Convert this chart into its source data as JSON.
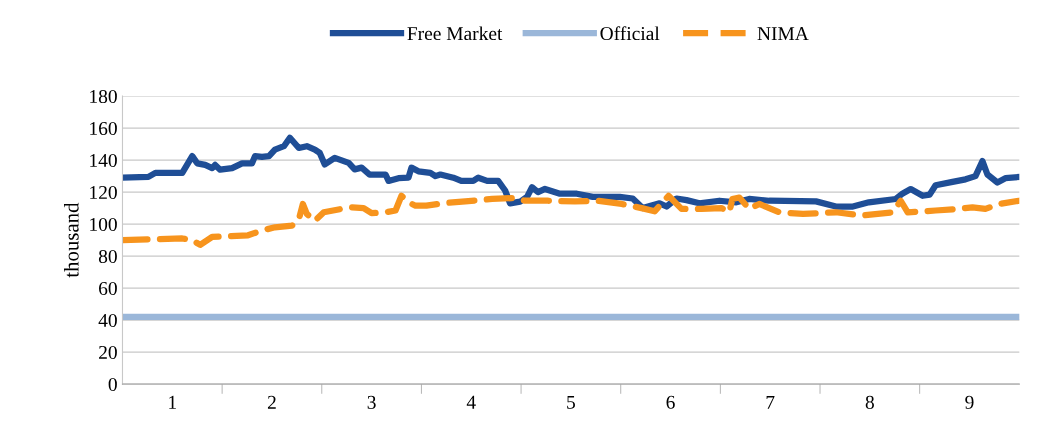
{
  "chart_data": {
    "type": "line",
    "ylabel": "thousand",
    "xlim": [
      0,
      9
    ],
    "ylim": [
      0,
      180
    ],
    "xticks": [
      {
        "value": 0.5,
        "label": "1"
      },
      {
        "value": 1.5,
        "label": "2"
      },
      {
        "value": 2.5,
        "label": "3"
      },
      {
        "value": 3.5,
        "label": "4"
      },
      {
        "value": 4.5,
        "label": "5"
      },
      {
        "value": 5.5,
        "label": "6"
      },
      {
        "value": 6.5,
        "label": "7"
      },
      {
        "value": 7.5,
        "label": "8"
      },
      {
        "value": 8.5,
        "label": "9"
      },
      {
        "value": 1,
        "label": null
      },
      {
        "value": 2,
        "label": null
      },
      {
        "value": 3,
        "label": null
      },
      {
        "value": 4,
        "label": null
      },
      {
        "value": 5,
        "label": null
      },
      {
        "value": 6,
        "label": null
      },
      {
        "value": 7,
        "label": null
      },
      {
        "value": 8,
        "label": null
      }
    ],
    "yticks": [
      0,
      20,
      40,
      60,
      80,
      100,
      120,
      140,
      160,
      180
    ],
    "grid": "y",
    "legend": "top",
    "series": [
      {
        "name": "Free Market",
        "color": "#1f4e96",
        "line_style": "solid",
        "x": [
          0,
          0.26,
          0.33,
          0.6,
          0.7,
          0.75,
          0.83,
          0.9,
          0.93,
          0.98,
          1.1,
          1.2,
          1.3,
          1.33,
          1.4,
          1.47,
          1.53,
          1.62,
          1.68,
          1.77,
          1.85,
          1.93,
          1.98,
          2.03,
          2.13,
          2.27,
          2.33,
          2.4,
          2.48,
          2.64,
          2.67,
          2.77,
          2.87,
          2.9,
          2.97,
          3.09,
          3.14,
          3.19,
          3.32,
          3.4,
          3.52,
          3.57,
          3.66,
          3.77,
          3.84,
          3.89,
          3.99,
          4.06,
          4.11,
          4.17,
          4.24,
          4.39,
          4.56,
          4.72,
          4.99,
          5.12,
          5.22,
          5.39,
          5.46,
          5.56,
          5.66,
          5.79,
          5.99,
          6.16,
          6.29,
          6.49,
          6.96,
          7.16,
          7.33,
          7.49,
          7.76,
          7.83,
          7.91,
          8.03,
          8.1,
          8.16,
          8.33,
          8.46,
          8.56,
          8.63,
          8.68,
          8.78,
          8.86,
          9.0
        ],
        "values": [
          129,
          129.5,
          132,
          132,
          142.5,
          138,
          137,
          135,
          137,
          134,
          135,
          138,
          138,
          142.5,
          142,
          142.5,
          146.6,
          148.7,
          154,
          147.6,
          148.7,
          146.6,
          144.5,
          137.3,
          141.4,
          138.3,
          134.2,
          135.3,
          131,
          131,
          127,
          128.7,
          129,
          135.3,
          133,
          132,
          130,
          131,
          129,
          127,
          127,
          129,
          127,
          127,
          121,
          113,
          114,
          117,
          123,
          120,
          122,
          119,
          119,
          117,
          117,
          116,
          110,
          113,
          111,
          116,
          115,
          113,
          114.6,
          113.6,
          115.7,
          114.6,
          114.2,
          111,
          111,
          113.6,
          115.7,
          119.2,
          121.9,
          117.7,
          118.4,
          124.3,
          126.4,
          128,
          130,
          139.4,
          131,
          126,
          128.7,
          129.5
        ]
      },
      {
        "name": "Official",
        "color": "#9bb7d9",
        "line_style": "solid",
        "x": [
          0,
          9
        ],
        "values": [
          42,
          42
        ]
      },
      {
        "name": "NIMA",
        "color": "#f7941d",
        "line_style": "dashed",
        "x": [
          0,
          0.6,
          0.7,
          0.78,
          0.9,
          1.26,
          1.4,
          1.53,
          1.7,
          1.77,
          1.81,
          1.85,
          1.93,
          2.02,
          2.2,
          2.3,
          2.42,
          2.5,
          2.64,
          2.74,
          2.8,
          2.87,
          2.94,
          3.05,
          3.21,
          3.44,
          3.71,
          3.94,
          4.04,
          4.27,
          4.54,
          4.77,
          5.01,
          5.21,
          5.34,
          5.48,
          5.61,
          5.81,
          6.01,
          6.09,
          6.12,
          6.19,
          6.29,
          6.39,
          6.59,
          6.83,
          7.16,
          7.43,
          7.73,
          7.81,
          7.88,
          8.16,
          8.39,
          8.53,
          8.66,
          8.8,
          9.0
        ],
        "values": [
          90,
          91,
          90,
          87,
          92,
          93,
          96,
          98,
          99,
          103,
          112.6,
          106.4,
          102,
          107.4,
          109.5,
          110.5,
          110,
          106.8,
          107.4,
          108.5,
          117.7,
          113.6,
          111.5,
          111.5,
          113,
          114.2,
          115.7,
          116.3,
          114.6,
          114.6,
          114.2,
          114.6,
          112.6,
          110,
          108,
          117.7,
          109.5,
          109.5,
          110,
          107.4,
          115.7,
          116.6,
          109.5,
          112.6,
          107.4,
          106.4,
          107.4,
          105.4,
          107.4,
          114.6,
          107.4,
          108.5,
          109.5,
          110.5,
          109.5,
          112.6,
          114.6
        ]
      }
    ]
  }
}
